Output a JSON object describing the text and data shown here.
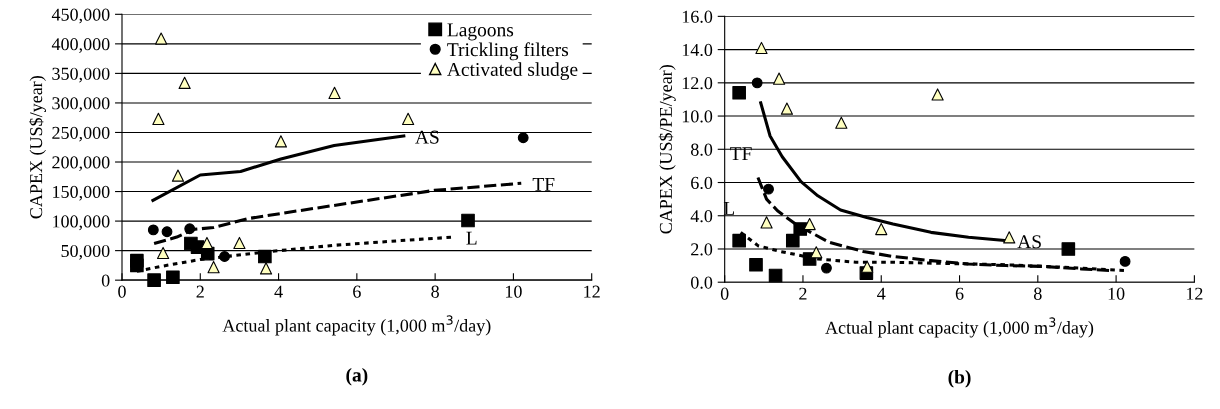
{
  "chart_data": [
    {
      "type": "scatter",
      "xlabel": "Actual plant capacity (1,000 m$^{3}$/day)",
      "ylabel": "CAPEX (US$/year)",
      "xlim": [
        0,
        12
      ],
      "xticks": [
        0,
        2,
        4,
        6,
        8,
        10,
        12
      ],
      "ylim": [
        0,
        450000
      ],
      "yticks": [
        {
          "value": 0,
          "label": "0"
        },
        {
          "value": 50000,
          "label": "50,000"
        },
        {
          "value": 100000,
          "label": "100,000"
        },
        {
          "value": 150000,
          "label": "150,000"
        },
        {
          "value": 200000,
          "label": "200,000"
        },
        {
          "value": 250000,
          "label": "250,000"
        },
        {
          "value": 300000,
          "label": "300,000"
        },
        {
          "value": 350000,
          "label": "350,000"
        },
        {
          "value": 400000,
          "label": "400,000"
        },
        {
          "value": 450000,
          "label": "450,000"
        }
      ],
      "grid": "y",
      "legend": "top right",
      "series": [
        {
          "name": "Lagoons",
          "type": "scatter",
          "marker": "square",
          "color": "#000000",
          "x": [
            0.38,
            0.38,
            0.82,
            1.3,
            1.76,
            1.93,
            2.19,
            3.65,
            8.84
          ],
          "values": [
            33000,
            25000,
            0,
            5000,
            62000,
            56000,
            45000,
            40000,
            101000
          ]
        },
        {
          "name": "Trickling filters",
          "type": "scatter",
          "marker": "circle",
          "color": "#000000",
          "x": [
            0.8,
            1.15,
            1.73,
            2.62,
            10.25
          ],
          "values": [
            85000,
            82000,
            87000,
            40000,
            241000
          ]
        },
        {
          "name": "Activated sludge",
          "type": "scatter",
          "marker": "triangle",
          "color": "#ffffc0",
          "x": [
            1.0,
            0.93,
            1.6,
            1.43,
            1.05,
            2.17,
            2.34,
            3.0,
            3.68,
            4.06,
            5.43,
            7.31
          ],
          "values": [
            409000,
            273000,
            334000,
            177000,
            46000,
            63000,
            22000,
            63000,
            20000,
            235000,
            317000,
            273000
          ]
        },
        {
          "type": "line",
          "line_style": "solid",
          "color": "#000000",
          "x": [
            0.79,
            2.0,
            3.03,
            4.06,
            5.42,
            7.2
          ],
          "values": [
            135000,
            178000,
            184000,
            205000,
            228000,
            244000
          ]
        },
        {
          "type": "line",
          "line_style": "dashed",
          "color": "#000000",
          "x": [
            0.82,
            1.4,
            1.83,
            2.34,
            3.2,
            4.56,
            6.27,
            7.98,
            10.2
          ],
          "values": [
            62000,
            73000,
            86000,
            89000,
            104000,
            118000,
            135000,
            152000,
            164000
          ]
        },
        {
          "type": "line",
          "line_style": "dotted",
          "color": "#000000",
          "x": [
            0.38,
            0.97,
            2.0,
            3.71,
            5.42,
            7.13,
            8.5
          ],
          "values": [
            15000,
            23000,
            35000,
            48000,
            59000,
            67000,
            73000
          ]
        }
      ],
      "annotations": [
        {
          "text": "AS",
          "x": 7.2,
          "y": 244000
        },
        {
          "text": "TF",
          "x": 10.2,
          "y": 164000
        },
        {
          "text": "L",
          "x": 8.5,
          "y": 73000
        },
        "(a)"
      ]
    },
    {
      "type": "scatter",
      "xlabel": "Actual plant capacity (1,000 m$^{3}$/day)",
      "ylabel": "CAPEX (US$/PE/year)",
      "xlim": [
        0,
        12
      ],
      "xticks": [
        0,
        2,
        4,
        6,
        8,
        10,
        12
      ],
      "ylim": [
        0,
        16
      ],
      "yticks": [
        {
          "value": 0,
          "label": "0.0"
        },
        {
          "value": 2,
          "label": "2.0"
        },
        {
          "value": 4,
          "label": "4.0"
        },
        {
          "value": 6,
          "label": "6.0"
        },
        {
          "value": 8,
          "label": "8.0"
        },
        {
          "value": 10,
          "label": "10.0"
        },
        {
          "value": 12,
          "label": "12.0"
        },
        {
          "value": 14,
          "label": "14.0"
        },
        {
          "value": 16,
          "label": "16.0"
        }
      ],
      "grid": "y",
      "series": [
        {
          "type": "scatter",
          "marker": "square",
          "color": "#000000",
          "x": [
            0.37,
            0.37,
            0.8,
            1.3,
            1.74,
            1.93,
            2.17,
            3.62,
            8.78
          ],
          "values": [
            11.4,
            2.5,
            1.05,
            0.4,
            2.5,
            3.2,
            1.4,
            0.55,
            2.0
          ]
        },
        {
          "type": "scatter",
          "marker": "circle",
          "color": "#000000",
          "x": [
            0.83,
            1.12,
            2.6,
            10.23
          ],
          "values": [
            12.0,
            5.6,
            0.85,
            1.25
          ]
        },
        {
          "type": "scatter",
          "marker": "triangle",
          "color": "#ffffc0",
          "x": [
            0.94,
            1.39,
            1.59,
            1.07,
            2.17,
            2.34,
            2.98,
            3.64,
            4.0,
            5.44,
            7.27
          ],
          "values": [
            14.1,
            12.25,
            10.45,
            3.6,
            3.5,
            1.8,
            9.6,
            0.93,
            3.2,
            11.3,
            2.7
          ]
        },
        {
          "type": "line",
          "line_style": "solid",
          "color": "#000000",
          "x": [
            0.92,
            1.16,
            1.47,
            1.95,
            2.38,
            2.96,
            3.63,
            4.3,
            5.27,
            6.23,
            7.19
          ],
          "values": [
            10.8,
            8.8,
            7.55,
            6.05,
            5.2,
            4.35,
            3.9,
            3.5,
            3.0,
            2.7,
            2.5
          ]
        },
        {
          "type": "line",
          "line_style": "dashed",
          "color": "#000000",
          "x": [
            0.85,
            1.07,
            1.35,
            1.81,
            2.67,
            3.54,
            4.3,
            5.27,
            6.23,
            7.19,
            8.15,
            9.11,
            9.88
          ],
          "values": [
            6.3,
            5.0,
            4.3,
            3.5,
            2.4,
            1.85,
            1.55,
            1.3,
            1.1,
            1.0,
            0.95,
            0.8,
            0.7
          ]
        },
        {
          "type": "line",
          "line_style": "dotted",
          "color": "#000000",
          "x": [
            0.41,
            0.85,
            1.42,
            2.38,
            3.35,
            4.3,
            5.27,
            6.23,
            7.19,
            8.15,
            9.11,
            10.23
          ],
          "values": [
            3.0,
            2.2,
            1.85,
            1.4,
            1.2,
            1.2,
            1.15,
            1.1,
            1.05,
            0.95,
            0.85,
            0.7
          ]
        }
      ],
      "annotations": [
        {
          "text": "TF",
          "x": 0.85,
          "y": 6.3
        },
        {
          "text": "L",
          "x": 0.41,
          "y": 3.0
        },
        {
          "text": "AS",
          "x": 7.19,
          "y": 2.5
        },
        "(b)"
      ]
    }
  ]
}
